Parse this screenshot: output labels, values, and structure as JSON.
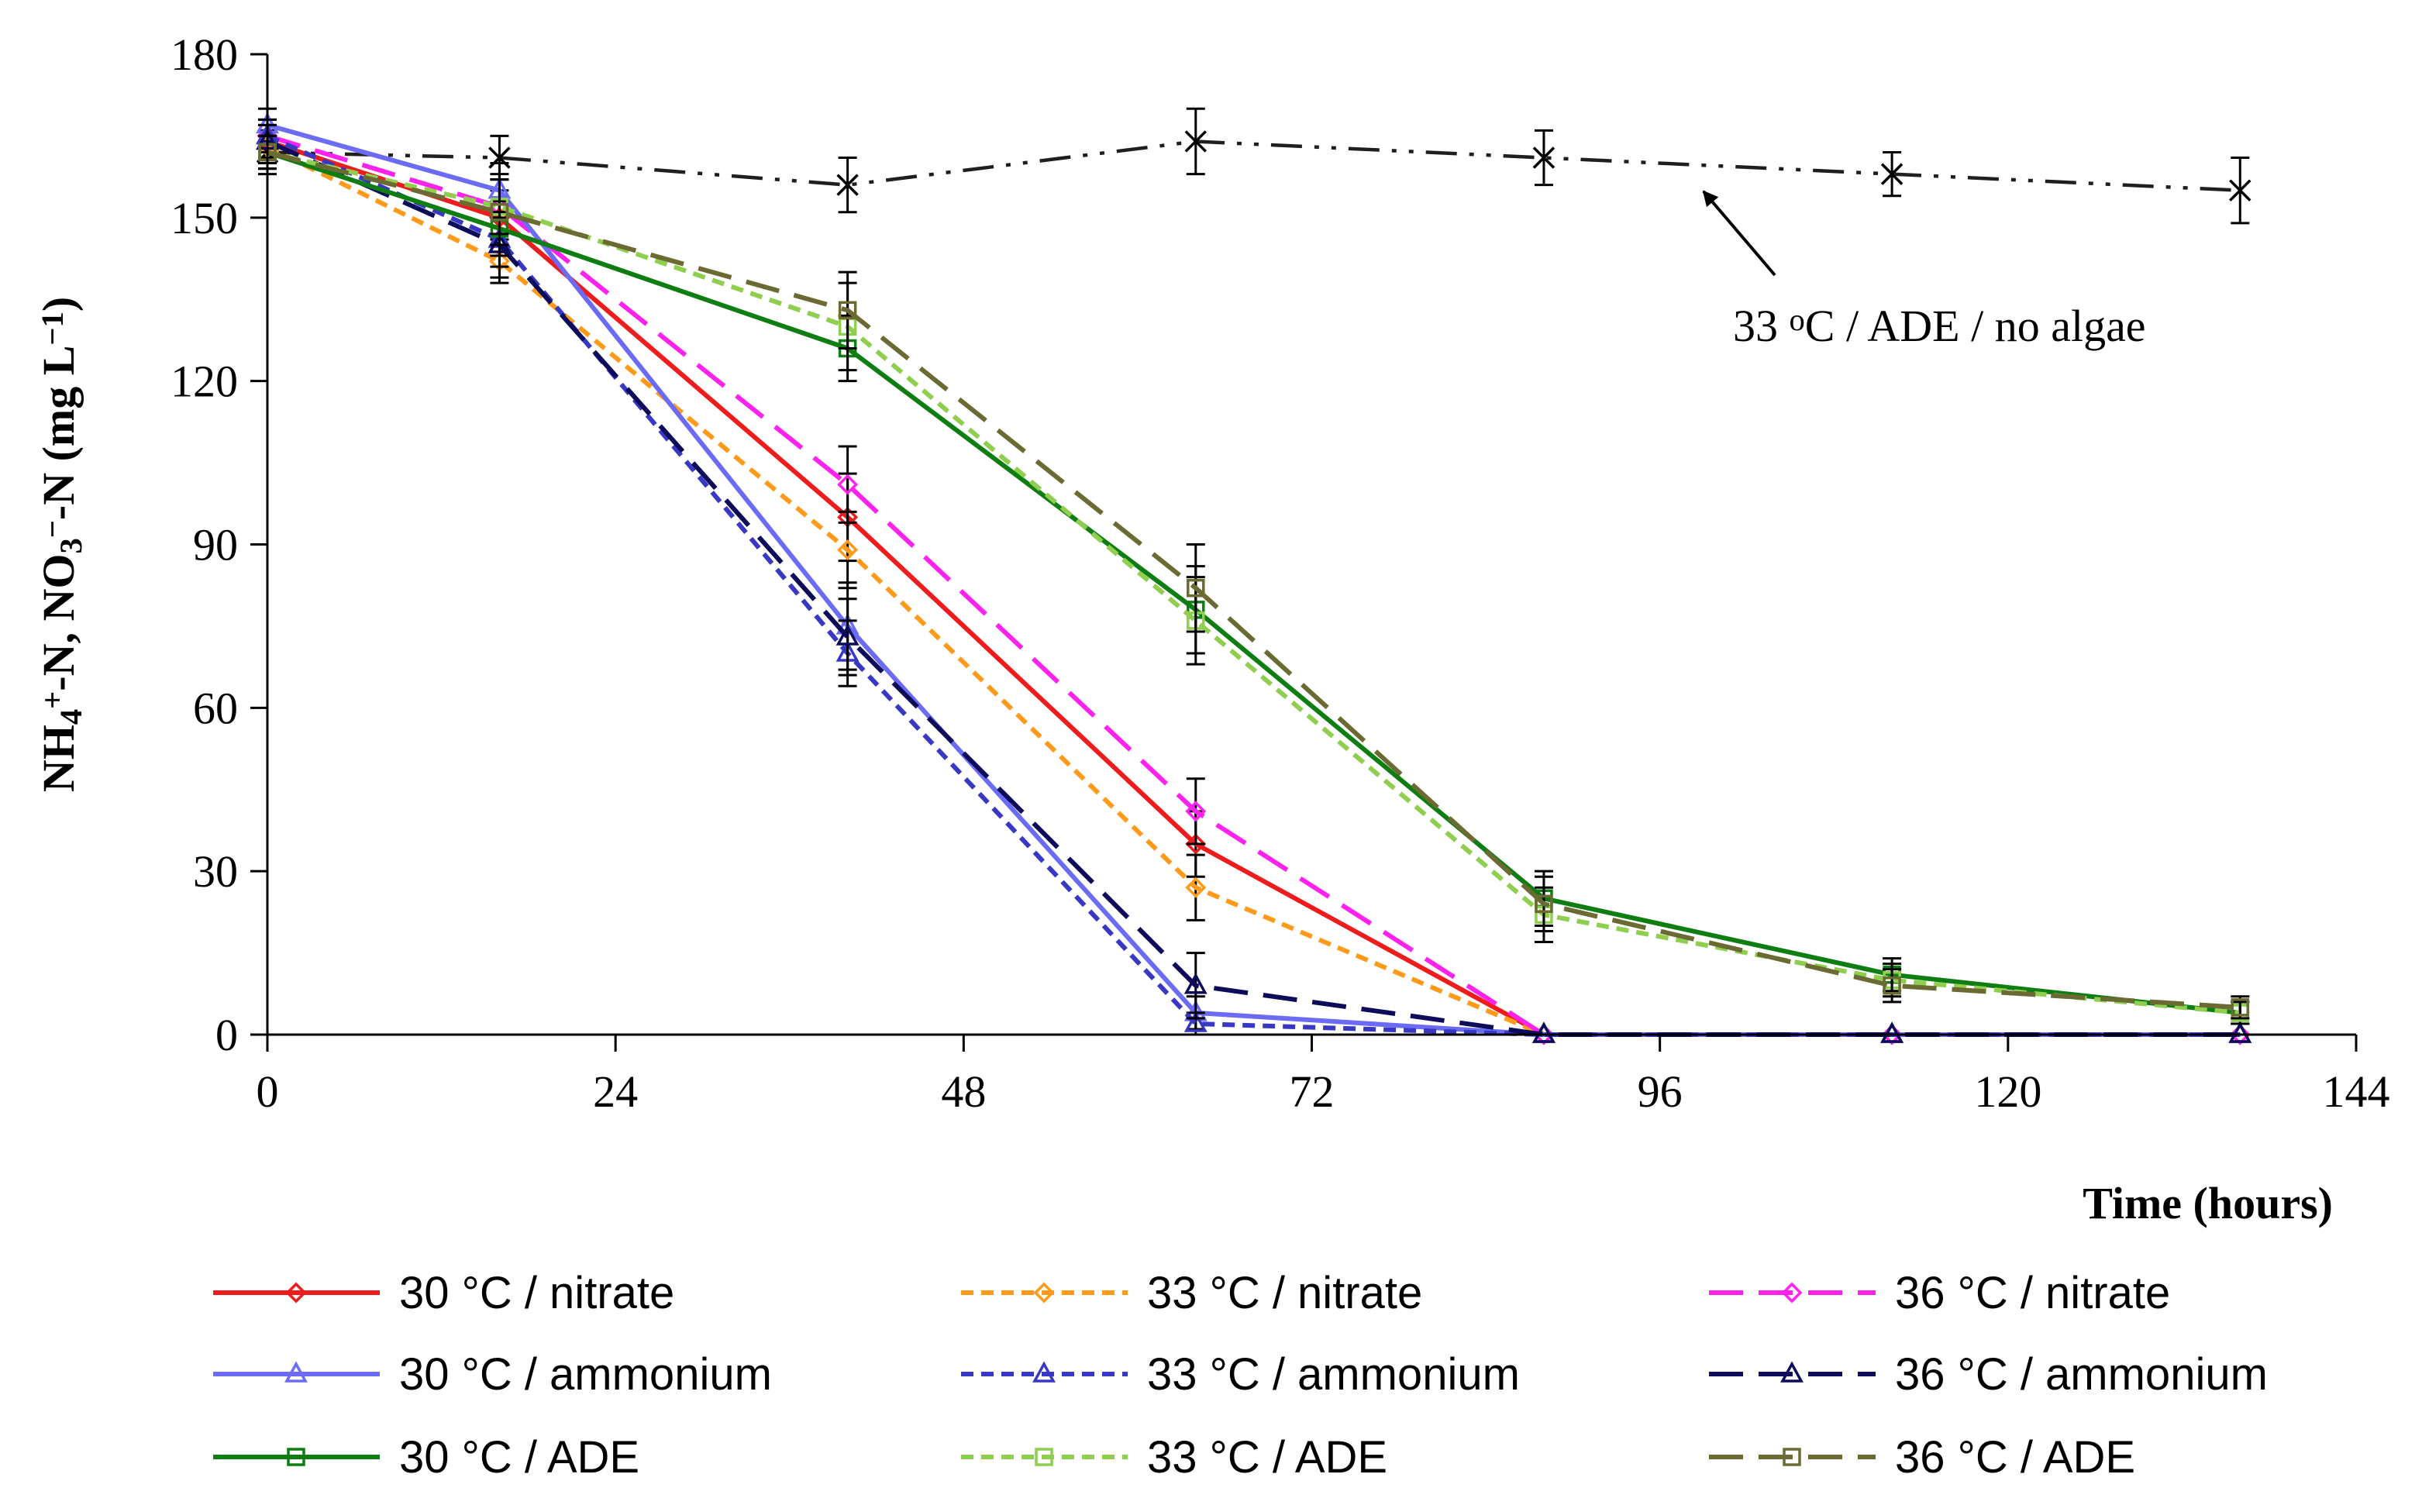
{
  "chart_data": {
    "type": "line",
    "title": "",
    "xlabel": "Time (hours)",
    "ylabel": {
      "parts": [
        {
          "t": "NH",
          "s": "n"
        },
        {
          "t": "4",
          "s": "sub"
        },
        {
          "t": "+",
          "s": "sup"
        },
        {
          "t": "-N, NO",
          "s": "n"
        },
        {
          "t": "3",
          "s": "sub"
        },
        {
          "t": "−",
          "s": "sup"
        },
        {
          "t": "-N (mg L",
          "s": "n"
        },
        {
          "t": "−1",
          "s": "sup"
        },
        {
          "t": ")",
          "s": "n"
        }
      ]
    },
    "xlim": [
      0,
      144
    ],
    "ylim": [
      0,
      180
    ],
    "xticks": [
      0,
      24,
      48,
      72,
      96,
      120,
      144
    ],
    "yticks": [
      0,
      30,
      60,
      90,
      120,
      150,
      180
    ],
    "x": [
      0,
      16,
      40,
      64,
      88,
      112,
      136
    ],
    "series": [
      {
        "id": "no-algae",
        "name": "33 oC / ADE / no algae",
        "color": "#1f1f1f",
        "dash": "dashdotdot",
        "marker": "x",
        "values": [
          162,
          161,
          156,
          164,
          161,
          158,
          155
        ],
        "errors": [
          4,
          4,
          5,
          6,
          5,
          4,
          6
        ],
        "in_legend": false
      },
      {
        "id": "t30-nitrate",
        "name": "30 °C / nitrate",
        "color": "#ee1c1c",
        "dash": "solid",
        "marker": "diamond",
        "values": [
          164,
          150,
          95,
          35,
          0,
          0,
          0
        ],
        "errors": [
          3,
          5,
          8,
          6,
          0,
          0,
          0
        ],
        "in_legend": true
      },
      {
        "id": "t33-nitrate",
        "name": "33 °C / nitrate",
        "color": "#ff9a1a",
        "dash": "short",
        "marker": "diamond",
        "values": [
          163,
          142,
          89,
          27,
          0,
          0,
          0
        ],
        "errors": [
          3,
          4,
          7,
          6,
          0,
          0,
          0
        ],
        "in_legend": true
      },
      {
        "id": "t36-nitrate",
        "name": "36 °C / nitrate",
        "color": "#ff22ee",
        "dash": "long",
        "marker": "diamond",
        "values": [
          165,
          152,
          101,
          41,
          0,
          0,
          0
        ],
        "errors": [
          3,
          6,
          7,
          6,
          0,
          0,
          0
        ],
        "in_legend": true
      },
      {
        "id": "t30-ammonium",
        "name": "30 °C / ammonium",
        "color": "#6b6bf5",
        "dash": "solid",
        "marker": "triangle",
        "values": [
          167,
          155,
          75,
          4,
          0,
          0,
          0
        ],
        "errors": [
          3,
          5,
          8,
          3,
          0,
          0,
          0
        ],
        "in_legend": true
      },
      {
        "id": "t33-ammonium",
        "name": "33 °C / ammonium",
        "color": "#3838c4",
        "dash": "short",
        "marker": "triangle",
        "values": [
          165,
          146,
          70,
          2,
          0,
          0,
          0
        ],
        "errors": [
          3,
          5,
          6,
          2,
          0,
          0,
          0
        ],
        "in_legend": true
      },
      {
        "id": "t36-ammonium",
        "name": "36 °C / ammonium",
        "color": "#0c0c5a",
        "dash": "long",
        "marker": "triangle",
        "values": [
          164,
          145,
          73,
          9,
          0,
          0,
          0
        ],
        "errors": [
          3,
          6,
          7,
          6,
          0,
          0,
          0
        ],
        "in_legend": true
      },
      {
        "id": "t30-ade",
        "name": "30 °C / ADE",
        "color": "#0f7e12",
        "dash": "solid",
        "marker": "square",
        "values": [
          162,
          148,
          126,
          78,
          25,
          11,
          4
        ],
        "errors": [
          3,
          5,
          6,
          8,
          5,
          3,
          2
        ],
        "in_legend": true
      },
      {
        "id": "t33-ade",
        "name": "33 °C / ADE",
        "color": "#8fce4e",
        "dash": "short",
        "marker": "square",
        "values": [
          162,
          152,
          130,
          76,
          22,
          10,
          4
        ],
        "errors": [
          3,
          5,
          8,
          8,
          5,
          3,
          2
        ],
        "in_legend": true
      },
      {
        "id": "t36-ade",
        "name": "36 °C / ADE",
        "color": "#6a6a32",
        "dash": "long",
        "marker": "square",
        "values": [
          162,
          151,
          133,
          82,
          24,
          9,
          5
        ],
        "errors": [
          3,
          6,
          7,
          8,
          5,
          3,
          2
        ],
        "in_legend": true
      }
    ],
    "annotation": {
      "parts": [
        {
          "t": "33 ",
          "s": "n"
        },
        {
          "t": "o",
          "s": "sup"
        },
        {
          "t": "C / ADE / no algae",
          "s": "n"
        }
      ],
      "points_to_series": "no-algae"
    },
    "legend": {
      "placement": "bottom",
      "columns": 3
    }
  }
}
